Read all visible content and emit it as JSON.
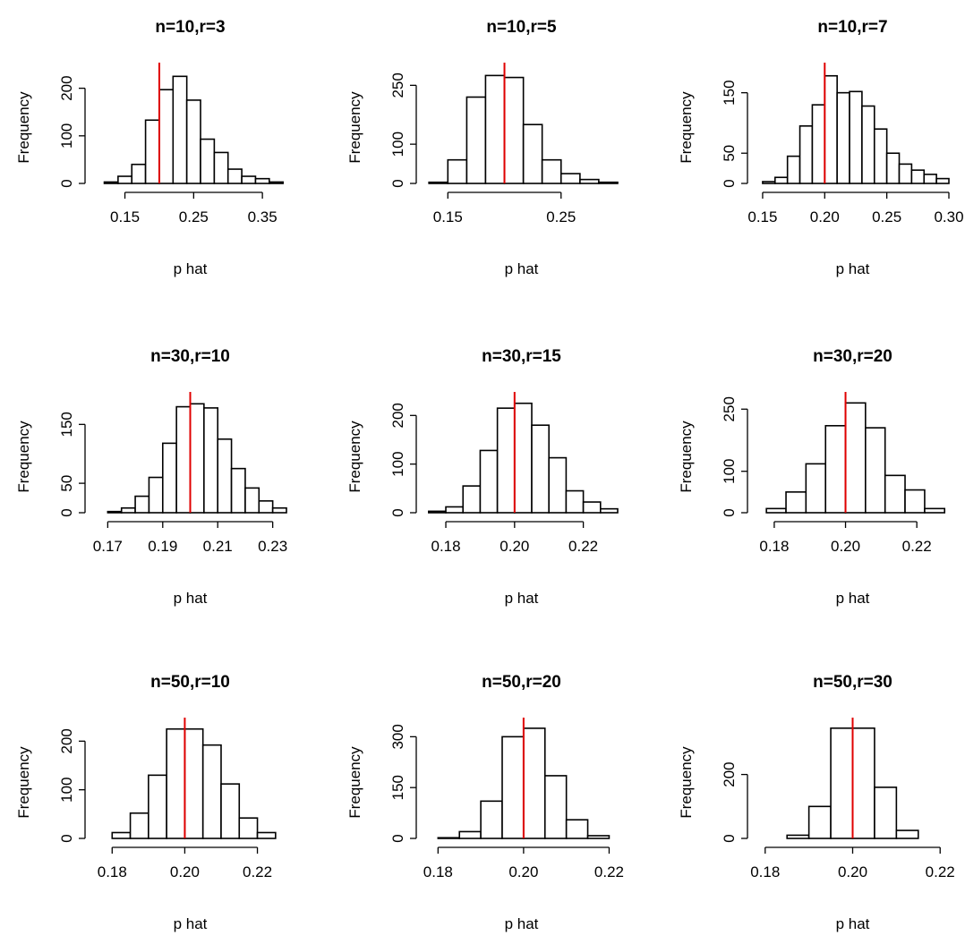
{
  "chart_data": [
    {
      "type": "histogram",
      "title": "n=10,r=3",
      "xlabel": "p hat",
      "ylabel": "Frequency",
      "bins": [
        0.12,
        0.14,
        0.16,
        0.18,
        0.2,
        0.22,
        0.24,
        0.26,
        0.28,
        0.3,
        0.32,
        0.34,
        0.36,
        0.38
      ],
      "values": [
        3,
        15,
        40,
        133,
        197,
        225,
        175,
        93,
        65,
        30,
        15,
        10,
        3
      ],
      "xlim": [
        0.105,
        0.385
      ],
      "xticks": [
        0.15,
        0.25,
        0.35
      ],
      "ylim": [
        0,
        235
      ],
      "yticks": [
        0,
        100,
        200
      ],
      "vline": 0.2,
      "vline_color": "#e00000",
      "color": "#ffffff"
    },
    {
      "type": "histogram",
      "title": "n=10,r=5",
      "xlabel": "p hat",
      "ylabel": "Frequency",
      "bins": [
        0.1333,
        0.15,
        0.1667,
        0.1833,
        0.2,
        0.2167,
        0.2333,
        0.25,
        0.2667,
        0.2833,
        0.3
      ],
      "values": [
        3,
        60,
        220,
        275,
        270,
        150,
        60,
        25,
        10,
        3
      ],
      "xlim": [
        0.13,
        0.3
      ],
      "xticks": [
        0.15,
        0.25
      ],
      "ylim": [
        0,
        285
      ],
      "yticks": [
        0,
        100,
        250
      ],
      "vline": 0.2,
      "vline_color": "#e00000",
      "color": "#ffffff"
    },
    {
      "type": "histogram",
      "title": "n=10,r=7",
      "xlabel": "p hat",
      "ylabel": "Frequency",
      "bins": [
        0.15,
        0.16,
        0.17,
        0.18,
        0.19,
        0.2,
        0.21,
        0.22,
        0.23,
        0.24,
        0.25,
        0.26,
        0.27,
        0.28,
        0.29,
        0.3
      ],
      "values": [
        3,
        10,
        45,
        95,
        130,
        178,
        150,
        152,
        128,
        90,
        50,
        32,
        22,
        15,
        8
      ],
      "xlim": [
        0.145,
        0.3
      ],
      "xticks": [
        0.15,
        {
          "value": 0.2,
          "label": "0.20"
        },
        0.25,
        {
          "value": 0.3,
          "label": "0.30"
        }
      ],
      "ylim": [
        0,
        185
      ],
      "yticks": [
        0,
        50,
        150
      ],
      "vline": 0.2,
      "vline_color": "#e00000",
      "color": "#ffffff"
    },
    {
      "type": "histogram",
      "title": "n=30,r=10",
      "xlabel": "p hat",
      "ylabel": "Frequency",
      "bins": [
        0.17,
        0.175,
        0.18,
        0.185,
        0.19,
        0.195,
        0.2,
        0.205,
        0.21,
        0.215,
        0.22,
        0.225,
        0.23,
        0.235
      ],
      "values": [
        2,
        8,
        28,
        60,
        118,
        180,
        185,
        178,
        125,
        75,
        42,
        20,
        8
      ],
      "xlim": [
        0.165,
        0.235
      ],
      "xticks": [
        0.17,
        0.19,
        0.21,
        0.23
      ],
      "ylim": [
        0,
        190
      ],
      "yticks": [
        0,
        50,
        150
      ],
      "vline": 0.2,
      "vline_color": "#e00000",
      "color": "#ffffff"
    },
    {
      "type": "histogram",
      "title": "n=30,r=15",
      "xlabel": "p hat",
      "ylabel": "Frequency",
      "bins": [
        0.175,
        0.18,
        0.185,
        0.19,
        0.195,
        0.2,
        0.205,
        0.21,
        0.215,
        0.22,
        0.225,
        0.23
      ],
      "values": [
        3,
        12,
        55,
        128,
        215,
        225,
        180,
        113,
        45,
        22,
        8
      ],
      "xlim": [
        0.174,
        0.23
      ],
      "xticks": [
        0.18,
        {
          "value": 0.2,
          "label": "0.20"
        },
        0.22
      ],
      "ylim": [
        0,
        230
      ],
      "yticks": [
        0,
        100,
        200
      ],
      "vline": 0.2,
      "vline_color": "#e00000",
      "color": "#ffffff"
    },
    {
      "type": "histogram",
      "title": "n=30,r=20",
      "xlabel": "p hat",
      "ylabel": "Frequency",
      "bins": [
        0.1778,
        0.1833,
        0.1889,
        0.1944,
        0.2,
        0.2056,
        0.2111,
        0.2167,
        0.2222,
        0.2278
      ],
      "values": [
        10,
        50,
        118,
        210,
        265,
        205,
        90,
        55,
        10
      ],
      "xlim": [
        0.175,
        0.229
      ],
      "xticks": [
        0.18,
        {
          "value": 0.2,
          "label": "0.20"
        },
        0.22
      ],
      "ylim": [
        0,
        270
      ],
      "yticks": [
        0,
        100,
        250
      ],
      "vline": 0.2,
      "vline_color": "#e00000",
      "color": "#ffffff"
    },
    {
      "type": "histogram",
      "title": "n=50,r=10",
      "xlabel": "p hat",
      "ylabel": "Frequency",
      "bins": [
        0.18,
        0.185,
        0.19,
        0.195,
        0.2,
        0.205,
        0.21,
        0.215,
        0.22,
        0.225
      ],
      "values": [
        12,
        52,
        130,
        225,
        225,
        192,
        112,
        42,
        12
      ],
      "xlim": [
        0.175,
        0.228
      ],
      "xticks": [
        0.18,
        {
          "value": 0.2,
          "label": "0.20"
        },
        0.22
      ],
      "ylim": [
        0,
        230
      ],
      "yticks": [
        0,
        100,
        200
      ],
      "vline": 0.2,
      "vline_color": "#e00000",
      "color": "#ffffff"
    },
    {
      "type": "histogram",
      "title": "n=50,r=20",
      "xlabel": "p hat",
      "ylabel": "Frequency",
      "bins": [
        0.18,
        0.185,
        0.19,
        0.195,
        0.2,
        0.205,
        0.21,
        0.215,
        0.22
      ],
      "values": [
        2,
        20,
        110,
        300,
        325,
        185,
        55,
        8
      ],
      "xlim": [
        0.177,
        0.222
      ],
      "xticks": [
        0.18,
        {
          "value": 0.2,
          "label": "0.20"
        },
        0.22
      ],
      "ylim": [
        0,
        330
      ],
      "yticks": [
        0,
        150,
        300
      ],
      "vline": 0.2,
      "vline_color": "#e00000",
      "color": "#ffffff"
    },
    {
      "type": "histogram",
      "title": "n=50,r=30",
      "xlabel": "p hat",
      "ylabel": "Frequency",
      "bins": [
        0.185,
        0.19,
        0.195,
        0.2,
        0.205,
        0.21,
        0.215
      ],
      "values": [
        10,
        100,
        345,
        345,
        160,
        25
      ],
      "xlim": [
        0.178,
        0.222
      ],
      "xticks": [
        0.18,
        {
          "value": 0.2,
          "label": "0.20"
        },
        0.22
      ],
      "ylim": [
        0,
        350
      ],
      "yticks": [
        0,
        200
      ],
      "vline": 0.2,
      "vline_color": "#e00000",
      "color": "#ffffff"
    }
  ]
}
